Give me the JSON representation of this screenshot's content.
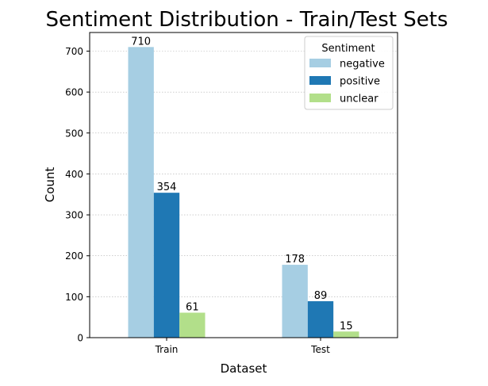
{
  "chart_data": {
    "type": "bar",
    "title": "Sentiment Distribution - Train/Test Sets",
    "xlabel": "Dataset",
    "ylabel": "Count",
    "categories": [
      "Train",
      "Test"
    ],
    "series": [
      {
        "name": "negative",
        "values": [
          710,
          178
        ],
        "color": "#a6cee3"
      },
      {
        "name": "positive",
        "values": [
          354,
          89
        ],
        "color": "#1f78b4"
      },
      {
        "name": "unclear",
        "values": [
          61,
          15
        ],
        "color": "#b2df8a"
      }
    ],
    "ylim": [
      0,
      745.5
    ],
    "yticks": [
      0,
      100,
      200,
      300,
      400,
      500,
      600,
      700
    ],
    "grid": "y-dotted",
    "legend": {
      "title": "Sentiment",
      "placement": "top-right"
    }
  }
}
